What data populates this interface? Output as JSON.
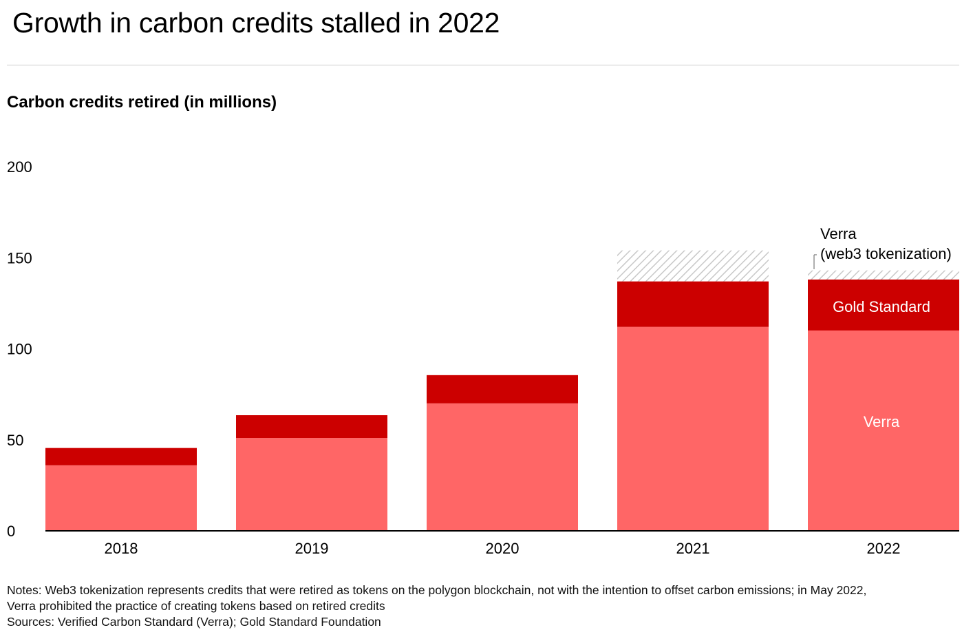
{
  "title": "Growth in carbon credits stalled in 2022",
  "subtitle": "Carbon credits retired (in millions)",
  "notes": [
    "Notes: Web3 tokenization represents credits that were retired as tokens on the polygon blockchain, not with the intention to offset carbon emissions; in May 2022,",
    "Verra prohibited the practice of creating tokens based on retired credits",
    "Sources: Verified Carbon Standard (Verra); Gold Standard Foundation"
  ],
  "chart_data": {
    "type": "bar",
    "stacked": true,
    "title": "Growth in carbon credits stalled in 2022",
    "ylabel": "Carbon credits retired (in millions)",
    "xlabel": "",
    "ylim": [
      0,
      200
    ],
    "yticks": [
      "0",
      "50",
      "100",
      "150",
      "200"
    ],
    "ytick_values": [
      0,
      50,
      100,
      150,
      200
    ],
    "grid": false,
    "categories": [
      "2018",
      "2019",
      "2020",
      "2021",
      "2022"
    ],
    "series": [
      {
        "name": "Verra",
        "color": "#ff6666",
        "values": [
          36,
          51,
          70,
          112,
          110
        ]
      },
      {
        "name": "Gold Standard",
        "color": "#cc0000",
        "values": [
          9.5,
          12.5,
          15.5,
          25,
          28
        ]
      },
      {
        "name": "Verra (web3 tokenization)",
        "color": "hatched",
        "values": [
          0,
          0,
          0,
          17,
          5
        ]
      }
    ],
    "annotations": {
      "verra": "Verra",
      "gold": "Gold Standard",
      "web3_line1": "Verra",
      "web3_line2": "(web3 tokenization)"
    }
  }
}
